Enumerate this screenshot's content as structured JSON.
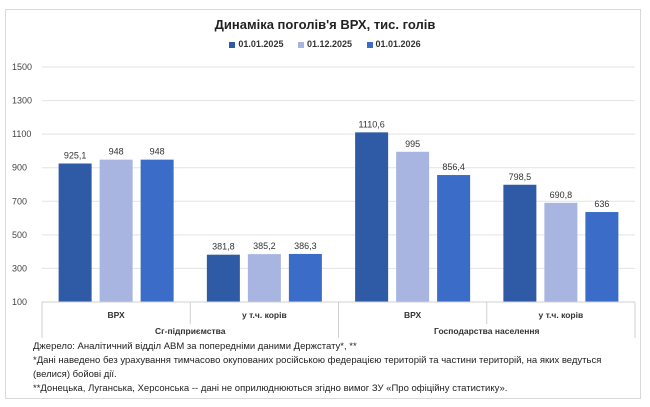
{
  "chart_data": {
    "type": "bar",
    "title": "Динаміка поголів'я ВРХ, тис. голів",
    "categories": [
      "ВРХ",
      "у т.ч. корів",
      "ВРХ",
      "у т.ч. корів"
    ],
    "groups": [
      {
        "label": "Сг-підприємства",
        "span": 2
      },
      {
        "label": "Господарства  населення",
        "span": 2
      }
    ],
    "series": [
      {
        "name": "01.01.2025",
        "color": "#2e5aa6",
        "values": [
          925.1,
          381.8,
          1110.6,
          798.5
        ],
        "labels": [
          "925,1",
          "381,8",
          "1110,6",
          "798,5"
        ]
      },
      {
        "name": "01.12.2025",
        "color": "#a7b5e0",
        "values": [
          948,
          385.2,
          995,
          690.8
        ],
        "labels": [
          "948",
          "385,2",
          "995",
          "690,8"
        ]
      },
      {
        "name": "01.01.2026",
        "color": "#3a6cc8",
        "values": [
          948,
          386.3,
          856.4,
          636
        ],
        "labels": [
          "948",
          "386,3",
          "856,4",
          "636"
        ]
      }
    ],
    "yticks": [
      "100",
      "300",
      "500",
      "700",
      "900",
      "1100",
      "1300",
      "1500"
    ],
    "ylim": [
      100,
      1500
    ],
    "grid": true,
    "legend": "top"
  },
  "notes": [
    "Джерело: Аналітичний відділ АВМ за попередніми даними Держстату*, **",
    "*Дані наведено без урахування тимчасово окупованих російською федерацією територій та частини територій, на яких ведуться (велися) бойові дії.",
    "**Донецька, Луганська, Херсонська -- дані не оприлюднюються згідно вимог ЗУ «Про офіційну статистику»."
  ]
}
